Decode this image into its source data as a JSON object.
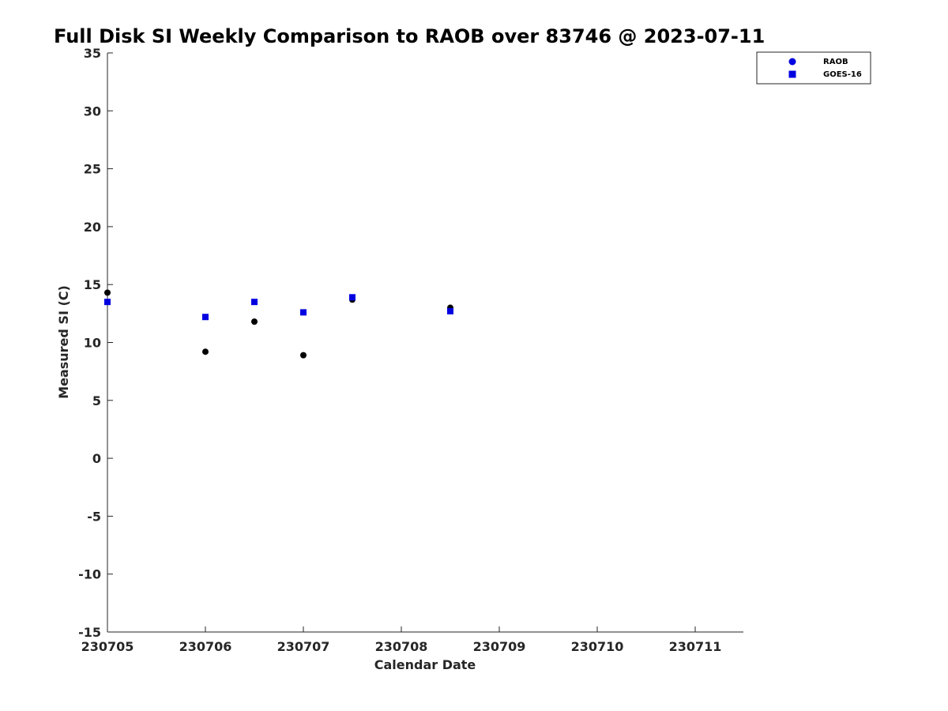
{
  "chart_data": {
    "type": "scatter",
    "title": "Full Disk SI Weekly Comparison to RAOB over 83746 @ 2023-07-11",
    "xlabel": "Calendar Date",
    "ylabel": "Measured SI (C)",
    "xlim": [
      230705,
      230711.5
    ],
    "ylim": [
      -15,
      35
    ],
    "x_ticks": [
      230705,
      230706,
      230707,
      230708,
      230709,
      230710,
      230711
    ],
    "x_tick_labels": [
      "230705",
      "230706",
      "230707",
      "230708",
      "230709",
      "230710",
      "230711"
    ],
    "y_ticks": [
      -15,
      -10,
      -5,
      0,
      5,
      10,
      15,
      20,
      25,
      30,
      35
    ],
    "y_tick_labels": [
      "-15",
      "-10",
      "-5",
      "0",
      "5",
      "10",
      "15",
      "20",
      "25",
      "30",
      "35"
    ],
    "grid": false,
    "legend_position": "top-right",
    "series": [
      {
        "name": "RAOB",
        "marker": "circle",
        "legend_color": "#0000e0",
        "plot_color": "#000000",
        "x": [
          230705,
          230706,
          230706.5,
          230707,
          230707.5,
          230708.5
        ],
        "y": [
          14.3,
          9.2,
          11.8,
          8.9,
          13.7,
          13.0
        ]
      },
      {
        "name": "GOES-16",
        "marker": "square",
        "legend_color": "#0000e0",
        "plot_color": "#0000e0",
        "x": [
          230705,
          230706,
          230706.5,
          230707,
          230707.5,
          230708.5
        ],
        "y": [
          13.5,
          12.2,
          13.5,
          12.6,
          13.9,
          12.7
        ]
      }
    ]
  }
}
